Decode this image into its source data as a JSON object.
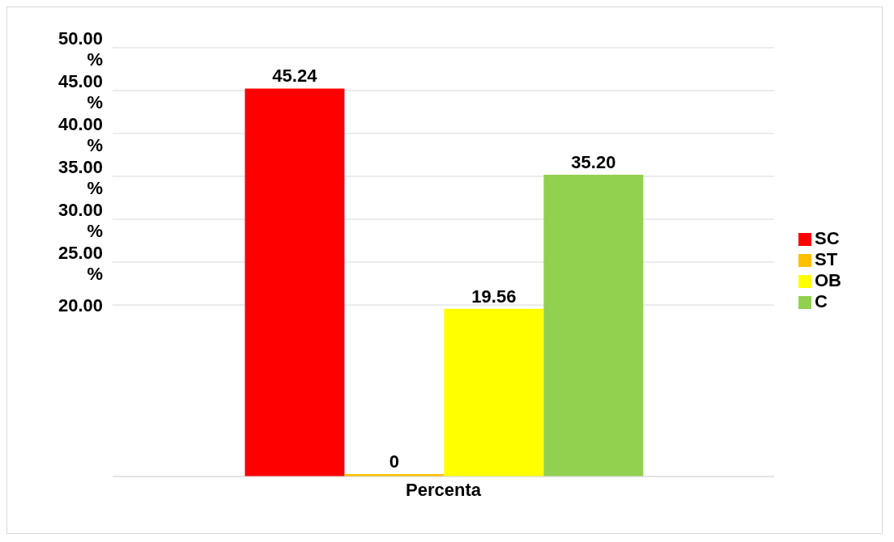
{
  "chart_data": {
    "type": "bar",
    "categories": [
      "Percenta"
    ],
    "series": [
      {
        "name": "SC",
        "color": "#ff0000",
        "values": [
          45.24
        ]
      },
      {
        "name": "ST",
        "color": "#ffc000",
        "values": [
          0
        ]
      },
      {
        "name": "OB",
        "color": "#ffff00",
        "values": [
          19.56
        ]
      },
      {
        "name": "C",
        "color": "#92d050",
        "values": [
          35.2
        ]
      }
    ],
    "value_labels": [
      [
        "45.24"
      ],
      [
        "0"
      ],
      [
        "19.56"
      ],
      [
        "35.20"
      ]
    ],
    "ylim": [
      0,
      50
    ],
    "yticks": [
      {
        "value": 20,
        "label": "20.00"
      },
      {
        "value": 25,
        "label": "25.00 %"
      },
      {
        "value": 30,
        "label": "30.00 %"
      },
      {
        "value": 35,
        "label": "35.00 %"
      },
      {
        "value": 40,
        "label": "40.00 %"
      },
      {
        "value": 45,
        "label": "45.00 %"
      },
      {
        "value": 50,
        "label": "50.00 %"
      }
    ],
    "grid": "y",
    "legend": "right"
  }
}
